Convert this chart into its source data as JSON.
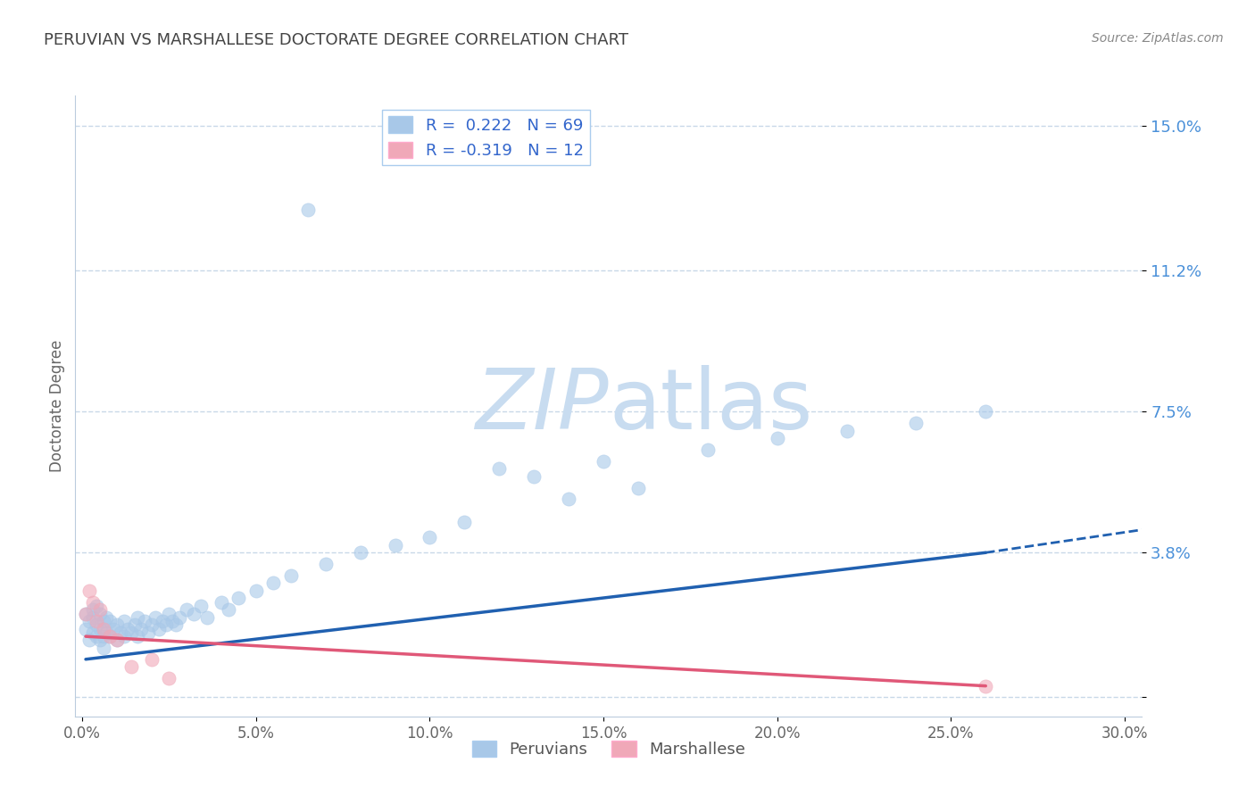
{
  "title": "PERUVIAN VS MARSHALLESE DOCTORATE DEGREE CORRELATION CHART",
  "source": "Source: ZipAtlas.com",
  "ylabel_label": "Doctorate Degree",
  "x_ticks": [
    0.0,
    0.05,
    0.1,
    0.15,
    0.2,
    0.25,
    0.3
  ],
  "x_tick_labels": [
    "0.0%",
    "5.0%",
    "10.0%",
    "15.0%",
    "20.0%",
    "25.0%",
    "30.0%"
  ],
  "y_ticks": [
    0.0,
    0.038,
    0.075,
    0.112,
    0.15
  ],
  "y_tick_labels": [
    "",
    "3.8%",
    "7.5%",
    "11.2%",
    "15.0%"
  ],
  "y_lim": [
    -0.005,
    0.158
  ],
  "x_lim": [
    -0.002,
    0.305
  ],
  "r_peruvian": 0.222,
  "n_peruvian": 69,
  "r_marshallese": -0.319,
  "n_marshallese": 12,
  "peruvian_color": "#A8C8E8",
  "marshallese_color": "#F0A8B8",
  "trend_peruvian_color": "#2060B0",
  "trend_marshallese_color": "#E05878",
  "watermark_zip_color": "#C8DCF0",
  "watermark_atlas_color": "#C8DCF0",
  "background_color": "#FFFFFF",
  "grid_color": "#C8D8E8",
  "peruvians_x": [
    0.001,
    0.001,
    0.002,
    0.002,
    0.003,
    0.003,
    0.003,
    0.004,
    0.004,
    0.004,
    0.005,
    0.005,
    0.005,
    0.006,
    0.006,
    0.006,
    0.007,
    0.007,
    0.008,
    0.008,
    0.009,
    0.01,
    0.01,
    0.011,
    0.012,
    0.012,
    0.013,
    0.014,
    0.015,
    0.016,
    0.016,
    0.017,
    0.018,
    0.019,
    0.02,
    0.021,
    0.022,
    0.023,
    0.024,
    0.025,
    0.026,
    0.027,
    0.028,
    0.03,
    0.032,
    0.034,
    0.036,
    0.04,
    0.042,
    0.045,
    0.05,
    0.055,
    0.06,
    0.065,
    0.07,
    0.08,
    0.09,
    0.1,
    0.11,
    0.12,
    0.13,
    0.14,
    0.15,
    0.16,
    0.18,
    0.2,
    0.22,
    0.24,
    0.26
  ],
  "peruvians_y": [
    0.018,
    0.022,
    0.015,
    0.02,
    0.017,
    0.021,
    0.023,
    0.016,
    0.019,
    0.024,
    0.015,
    0.018,
    0.022,
    0.016,
    0.02,
    0.013,
    0.017,
    0.021,
    0.016,
    0.02,
    0.018,
    0.015,
    0.019,
    0.017,
    0.016,
    0.02,
    0.018,
    0.017,
    0.019,
    0.016,
    0.021,
    0.018,
    0.02,
    0.017,
    0.019,
    0.021,
    0.018,
    0.02,
    0.019,
    0.022,
    0.02,
    0.019,
    0.021,
    0.023,
    0.022,
    0.024,
    0.021,
    0.025,
    0.023,
    0.026,
    0.028,
    0.03,
    0.032,
    0.128,
    0.035,
    0.038,
    0.04,
    0.042,
    0.046,
    0.06,
    0.058,
    0.052,
    0.062,
    0.055,
    0.065,
    0.068,
    0.07,
    0.072,
    0.075
  ],
  "marshallese_x": [
    0.001,
    0.002,
    0.003,
    0.004,
    0.005,
    0.006,
    0.008,
    0.01,
    0.014,
    0.02,
    0.025,
    0.26
  ],
  "marshallese_y": [
    0.022,
    0.028,
    0.025,
    0.02,
    0.023,
    0.018,
    0.016,
    0.015,
    0.008,
    0.01,
    0.005,
    0.003
  ],
  "trend_p_x_start": 0.001,
  "trend_p_x_end": 0.26,
  "trend_p_y_start": 0.01,
  "trend_p_y_end": 0.038,
  "trend_p_x_dash_end": 0.305,
  "trend_p_y_dash_end": 0.044,
  "trend_m_x_start": 0.001,
  "trend_m_x_end": 0.26,
  "trend_m_y_start": 0.016,
  "trend_m_y_end": 0.003
}
